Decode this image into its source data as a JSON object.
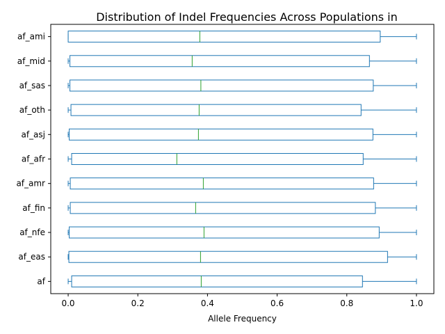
{
  "chart_data": {
    "type": "box",
    "orientation": "horizontal",
    "title": "Distribution of Indel Frequencies Across Populations in",
    "xlabel": "Allele Frequency",
    "ylabel": "",
    "xlim": [
      -0.05,
      1.05
    ],
    "xticks": [
      0.0,
      0.2,
      0.4,
      0.6,
      0.8,
      1.0
    ],
    "xtick_labels": [
      "0.0",
      "0.2",
      "0.4",
      "0.6",
      "0.8",
      "1.0"
    ],
    "grid": false,
    "colors": {
      "box": "#1f77b4",
      "median": "#2ca02c"
    },
    "categories": [
      "af",
      "af_eas",
      "af_nfe",
      "af_fin",
      "af_amr",
      "af_afr",
      "af_asj",
      "af_oth",
      "af_sas",
      "af_mid",
      "af_ami"
    ],
    "boxes": [
      {
        "name": "af",
        "whislo": 0.0,
        "q1": 0.01,
        "median": 0.382,
        "q3": 0.845,
        "whishi": 1.0
      },
      {
        "name": "af_eas",
        "whislo": 0.0,
        "q1": 0.002,
        "median": 0.38,
        "q3": 0.917,
        "whishi": 1.0
      },
      {
        "name": "af_nfe",
        "whislo": 0.0,
        "q1": 0.003,
        "median": 0.39,
        "q3": 0.893,
        "whishi": 1.0
      },
      {
        "name": "af_fin",
        "whislo": 0.0,
        "q1": 0.006,
        "median": 0.366,
        "q3": 0.882,
        "whishi": 1.0
      },
      {
        "name": "af_amr",
        "whislo": 0.0,
        "q1": 0.006,
        "median": 0.388,
        "q3": 0.877,
        "whishi": 1.0
      },
      {
        "name": "af_afr",
        "whislo": 0.0,
        "q1": 0.01,
        "median": 0.312,
        "q3": 0.847,
        "whishi": 1.0
      },
      {
        "name": "af_asj",
        "whislo": 0.0,
        "q1": 0.003,
        "median": 0.374,
        "q3": 0.875,
        "whishi": 1.0
      },
      {
        "name": "af_oth",
        "whislo": 0.0,
        "q1": 0.008,
        "median": 0.376,
        "q3": 0.841,
        "whishi": 1.0
      },
      {
        "name": "af_sas",
        "whislo": 0.0,
        "q1": 0.005,
        "median": 0.381,
        "q3": 0.876,
        "whishi": 1.0
      },
      {
        "name": "af_mid",
        "whislo": 0.0,
        "q1": 0.005,
        "median": 0.356,
        "q3": 0.865,
        "whishi": 1.0
      },
      {
        "name": "af_ami",
        "whislo": 0.0,
        "q1": 0.0,
        "median": 0.378,
        "q3": 0.896,
        "whishi": 1.0
      }
    ]
  }
}
